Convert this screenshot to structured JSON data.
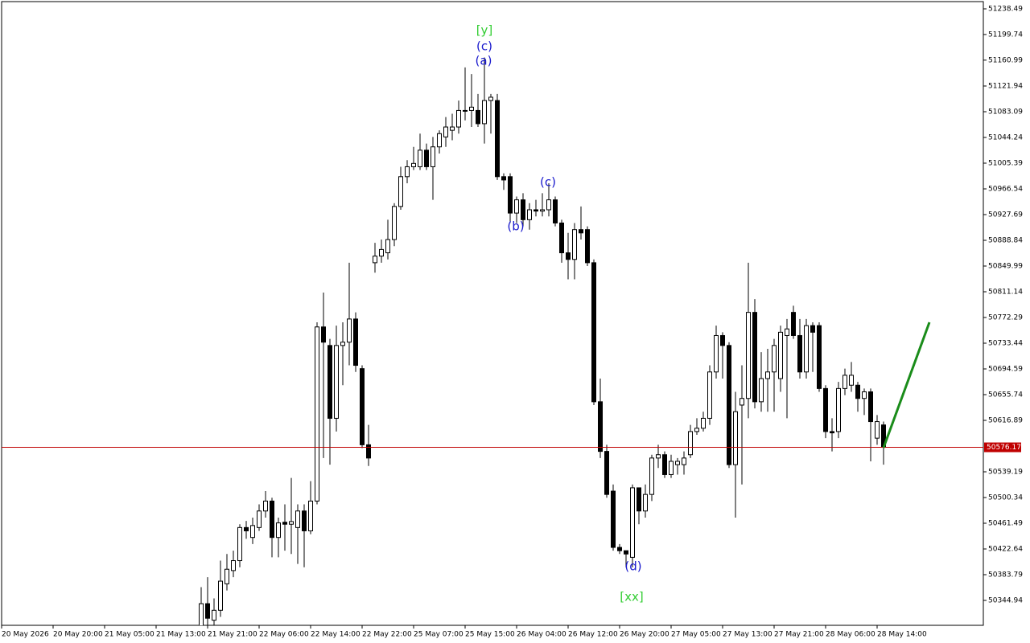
{
  "chart_data": {
    "type": "candlestick",
    "categories": [
      "20 May 2026",
      null,
      null,
      null,
      null,
      null,
      null,
      null,
      "20 May 20:00",
      null,
      null,
      null,
      null,
      null,
      null,
      null,
      "21 May 05:00",
      null,
      null,
      null,
      null,
      null,
      null,
      null,
      "21 May 13:00",
      null,
      null,
      null,
      null,
      null,
      null,
      null,
      "21 May 21:00",
      null,
      null,
      null,
      null,
      null,
      null,
      null,
      "22 May 06:00",
      null,
      null,
      null,
      null,
      null,
      null,
      null,
      "22 May 14:00",
      null,
      null,
      null,
      null,
      null,
      null,
      null,
      "22 May 22:00",
      null,
      null,
      null,
      null,
      null,
      null,
      null,
      "25 May 07:00",
      null,
      null,
      null,
      null,
      null,
      null,
      null,
      "25 May 15:00",
      null,
      null,
      null,
      null,
      null,
      null,
      null,
      "26 May 04:00",
      null,
      null,
      null,
      null,
      null,
      null,
      null,
      "26 May 12:00",
      null,
      null,
      null,
      null,
      null,
      null,
      null,
      "26 May 20:00",
      null,
      null,
      null,
      null,
      null,
      null,
      null,
      "27 May 05:00",
      null,
      null,
      null,
      null,
      null,
      null,
      null,
      "27 May 13:00",
      null,
      null,
      null,
      null,
      null,
      null,
      null,
      "27 May 21:00",
      null,
      null,
      null,
      null,
      null,
      null,
      null,
      "28 May 06:00",
      null,
      null,
      null,
      null,
      null,
      null,
      null,
      "28 May 14:00",
      null
    ],
    "open": [
      null,
      null,
      null,
      null,
      null,
      null,
      null,
      null,
      null,
      null,
      null,
      null,
      null,
      null,
      null,
      null,
      null,
      null,
      null,
      null,
      null,
      null,
      null,
      null,
      null,
      null,
      null,
      null,
      null,
      null,
      null,
      50300,
      50340,
      50315,
      50330,
      50370,
      50390,
      50405,
      50455,
      50440,
      50455,
      50480,
      50495,
      50440,
      50463,
      50460,
      50455,
      50480,
      50450,
      50495,
      50758,
      50730,
      50620,
      50730,
      50735,
      50770,
      50695,
      50580,
      50855,
      50865,
      50870,
      50890,
      50940,
      50985,
      51000,
      51000,
      51025,
      51000,
      51030,
      51045,
      51055,
      51060,
      51085,
      51085,
      51085,
      51065,
      51100,
      51100,
      50985,
      50985,
      50930,
      50950,
      50920,
      50935,
      50933,
      50935,
      50950,
      50915,
      50870,
      50860,
      50905,
      50905,
      50855,
      50645,
      50570,
      50510,
      50425,
      50420,
      50410,
      50515,
      50480,
      50505,
      50560,
      50565,
      50535,
      50550,
      50550,
      50565,
      50600,
      50605,
      50620,
      50690,
      50745,
      50730,
      50550,
      50640,
      50650,
      50780,
      50645,
      50680,
      50690,
      50680,
      50745,
      50780,
      50745,
      50690,
      50760,
      50760,
      50665,
      50600,
      50600,
      50665,
      50670,
      50670,
      50650,
      50660,
      50590,
      50610
    ],
    "high": [
      null,
      null,
      null,
      null,
      null,
      null,
      null,
      null,
      null,
      null,
      null,
      null,
      null,
      null,
      null,
      null,
      null,
      null,
      null,
      null,
      null,
      null,
      null,
      null,
      null,
      null,
      null,
      null,
      null,
      null,
      null,
      50365,
      50380,
      50348,
      50405,
      50415,
      50420,
      50460,
      50465,
      50470,
      50490,
      50510,
      50500,
      50470,
      50490,
      50530,
      50490,
      50490,
      50525,
      50765,
      50810,
      50740,
      50760,
      50765,
      50855,
      50780,
      50700,
      50610,
      50885,
      50890,
      50920,
      50945,
      51000,
      51010,
      51030,
      51050,
      51035,
      51045,
      51055,
      51075,
      51080,
      51100,
      51150,
      51140,
      51110,
      51165,
      51110,
      51110,
      50990,
      50990,
      50955,
      50960,
      50945,
      50950,
      50960,
      50975,
      50955,
      50920,
      50900,
      50915,
      50940,
      50910,
      50860,
      50680,
      50580,
      50520,
      50430,
      50420,
      50520,
      50515,
      50520,
      50565,
      50580,
      50570,
      50565,
      50560,
      50570,
      50610,
      50620,
      50630,
      50700,
      50760,
      50750,
      50735,
      50660,
      50700,
      50855,
      50800,
      50720,
      50725,
      50740,
      50760,
      50770,
      50790,
      50770,
      50770,
      50765,
      50765,
      50670,
      50620,
      50675,
      50695,
      50705,
      50675,
      50665,
      50665,
      50625,
      50615
    ],
    "low": [
      null,
      null,
      null,
      null,
      null,
      null,
      null,
      null,
      null,
      null,
      null,
      null,
      null,
      null,
      null,
      null,
      null,
      null,
      null,
      null,
      null,
      null,
      null,
      null,
      null,
      null,
      null,
      null,
      null,
      null,
      null,
      50295,
      50300,
      50300,
      50320,
      50360,
      50380,
      50395,
      50438,
      50430,
      50450,
      50470,
      50410,
      50410,
      50420,
      50415,
      50400,
      50395,
      50445,
      50490,
      50560,
      50550,
      50600,
      50670,
      50700,
      50690,
      50575,
      50548,
      50840,
      50855,
      50860,
      50880,
      50935,
      50975,
      50995,
      50995,
      50995,
      50950,
      51020,
      51030,
      51040,
      51050,
      51070,
      51060,
      51060,
      51035,
      51050,
      50980,
      50965,
      50915,
      50915,
      50910,
      50905,
      50925,
      50925,
      50925,
      50910,
      50855,
      50830,
      50830,
      50890,
      50850,
      50640,
      50560,
      50500,
      50420,
      50415,
      50395,
      50395,
      50460,
      50470,
      50495,
      50545,
      50530,
      50530,
      50535,
      50535,
      50560,
      50595,
      50600,
      50610,
      50680,
      50680,
      50545,
      50470,
      50520,
      50620,
      50635,
      50630,
      50630,
      50630,
      50660,
      50620,
      50740,
      50680,
      50680,
      50690,
      50660,
      50590,
      50570,
      50590,
      50655,
      50660,
      50630,
      50625,
      50555,
      50580,
      50550
    ],
    "close": [
      null,
      null,
      null,
      null,
      null,
      null,
      null,
      null,
      null,
      null,
      null,
      null,
      null,
      null,
      null,
      null,
      null,
      null,
      null,
      null,
      null,
      null,
      null,
      null,
      null,
      null,
      null,
      null,
      null,
      null,
      null,
      50340,
      50318,
      50330,
      50374,
      50392,
      50405,
      50455,
      50450,
      50458,
      50480,
      50495,
      50440,
      50462,
      50460,
      50464,
      50480,
      50450,
      50495,
      50758,
      50735,
      50620,
      50730,
      50735,
      50770,
      50700,
      50580,
      50560,
      50865,
      50875,
      50890,
      50940,
      50985,
      51000,
      51005,
      51025,
      51000,
      51030,
      51050,
      51060,
      51060,
      51085,
      51085,
      51090,
      51065,
      51100,
      51105,
      50985,
      50980,
      50930,
      50950,
      50920,
      50935,
      50933,
      50935,
      50950,
      50915,
      50870,
      50860,
      50905,
      50900,
      50855,
      50645,
      50570,
      50505,
      50425,
      50420,
      50415,
      50515,
      50480,
      50505,
      50560,
      50565,
      50535,
      50555,
      50555,
      50560,
      50600,
      50605,
      50620,
      50690,
      50745,
      50730,
      50550,
      50630,
      50650,
      50780,
      50645,
      50680,
      50690,
      50730,
      50750,
      50755,
      50745,
      50690,
      50760,
      50750,
      50665,
      50600,
      50598,
      50665,
      50685,
      50685,
      50650,
      50660,
      50615,
      50615,
      50576.17
    ],
    "up_color": "#ffffff",
    "down_color": "#000000",
    "last_price": 50576.17,
    "last_price_color": "#c00000",
    "ylim": [
      50307.3,
      51249.42
    ],
    "yticks": [
      51238.49,
      51199.74,
      51160.99,
      51121.94,
      51083.09,
      51044.24,
      51005.39,
      50966.54,
      50927.69,
      50888.84,
      50849.99,
      50811.14,
      50772.29,
      50733.44,
      50694.59,
      50655.74,
      50616.89,
      50539.19,
      50500.34,
      50461.49,
      50422.64,
      50383.79,
      50344.94
    ],
    "annotations": [
      {
        "text": "[y]",
        "color": "#32cd32"
      },
      {
        "text": "(c)",
        "color": "#1a1acd"
      },
      {
        "text": "(a)",
        "color": "#1a1acd"
      },
      {
        "text": "(c)",
        "color": "#1a1acd"
      },
      {
        "text": "(b)",
        "color": "#1a1acd"
      },
      {
        "text": "(d)",
        "color": "#1a1acd"
      },
      {
        "text": "[xx]",
        "color": "#32cd32"
      }
    ]
  }
}
